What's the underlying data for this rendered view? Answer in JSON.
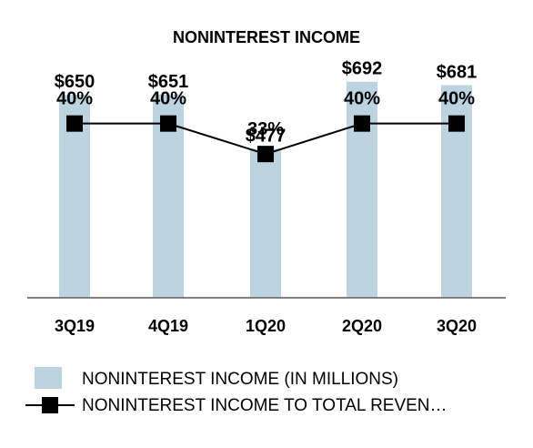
{
  "chart_data": {
    "type": "bar",
    "title": "NONINTEREST INCOME",
    "categories": [
      "3Q19",
      "4Q19",
      "1Q20",
      "2Q20",
      "3Q20"
    ],
    "series": [
      {
        "name": "NONINTEREST INCOME (IN MILLIONS)",
        "type": "bar",
        "values": [
          650,
          651,
          477,
          692,
          681
        ],
        "labels": [
          "$650",
          "$651",
          "$477",
          "$692",
          "$681"
        ],
        "color": "#bcd4e0"
      },
      {
        "name": "NONINTEREST INCOME TO TOTAL REVEN…",
        "type": "line",
        "values": [
          40,
          40,
          33,
          40,
          40
        ],
        "labels": [
          "40%",
          "40%",
          "33%",
          "40%",
          "40%"
        ],
        "color": "#000000"
      }
    ],
    "bar_ylim": [
      0,
      700
    ],
    "line_ylim": [
      0,
      60
    ],
    "grid": false,
    "legend_position": "bottom-left"
  }
}
